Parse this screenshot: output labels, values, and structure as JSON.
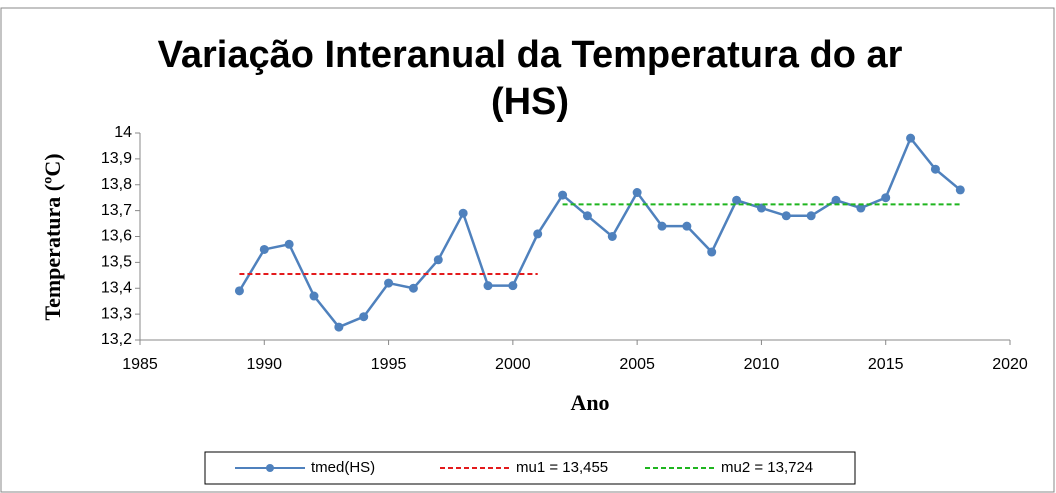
{
  "chart_data": {
    "type": "line",
    "title": [
      "Variação Interanual da Temperatura do ar",
      "(HS)"
    ],
    "x_label": "Ano",
    "y_label": "Temperatura (ºC)",
    "xlim": [
      1985,
      2020
    ],
    "xticks": [
      1985,
      1990,
      1995,
      2000,
      2005,
      2010,
      2015,
      2020
    ],
    "ylim": [
      13.2,
      14
    ],
    "yticks": [
      {
        "value": 13.2,
        "label": "13,2"
      },
      {
        "value": 13.3,
        "label": "13,3"
      },
      {
        "value": 13.4,
        "label": "13,4"
      },
      {
        "value": 13.5,
        "label": "13,5"
      },
      {
        "value": 13.6,
        "label": "13,6"
      },
      {
        "value": 13.7,
        "label": "13,7"
      },
      {
        "value": 13.8,
        "label": "13,8"
      },
      {
        "value": 13.9,
        "label": "13,9"
      },
      14
    ],
    "legend": "bottom",
    "series": [
      {
        "name": "tmed(HS)",
        "color": "#4f81bd",
        "markers": true,
        "dash": false,
        "x": [
          1989,
          1990,
          1991,
          1992,
          1993,
          1994,
          1995,
          1996,
          1997,
          1998,
          1999,
          2000,
          2001,
          2002,
          2003,
          2004,
          2005,
          2006,
          2007,
          2008,
          2009,
          2010,
          2011,
          2012,
          2013,
          2014,
          2015,
          2016,
          2017,
          2018
        ],
        "values": [
          13.39,
          13.55,
          13.57,
          13.37,
          13.25,
          13.29,
          13.42,
          13.4,
          13.51,
          13.69,
          13.41,
          13.41,
          13.61,
          13.76,
          13.68,
          13.6,
          13.77,
          13.64,
          13.64,
          13.54,
          13.74,
          13.71,
          13.68,
          13.68,
          13.74,
          13.71,
          13.75,
          13.98,
          13.86,
          13.78
        ]
      },
      {
        "name": "mu1 = 13,455",
        "color": "#e31a1c",
        "markers": false,
        "dash": true,
        "x": [
          1989,
          2001
        ],
        "values": [
          13.455,
          13.455
        ]
      },
      {
        "name": "mu2 = 13,724",
        "color": "#1fb51f",
        "markers": false,
        "dash": true,
        "x": [
          2002,
          2018
        ],
        "values": [
          13.724,
          13.724
        ]
      }
    ]
  }
}
